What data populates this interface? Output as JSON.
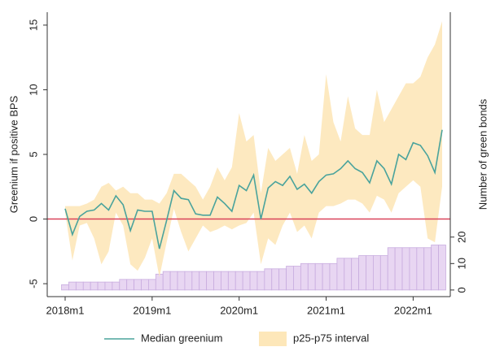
{
  "chart_data": {
    "type": "line",
    "categories": [
      "2018m1",
      null,
      null,
      null,
      null,
      null,
      null,
      null,
      null,
      null,
      null,
      null,
      "2019m1",
      null,
      null,
      null,
      null,
      null,
      null,
      null,
      null,
      null,
      null,
      null,
      "2020m1",
      null,
      null,
      null,
      null,
      null,
      null,
      null,
      null,
      null,
      null,
      null,
      "2021m1",
      null,
      null,
      null,
      null,
      null,
      null,
      null,
      null,
      null,
      null,
      null,
      "2022m1",
      null,
      null,
      null,
      null
    ],
    "series": [
      {
        "name": "Median greenium",
        "color": "#4aa39c",
        "values": [
          0.8,
          -1.2,
          0.2,
          0.6,
          0.7,
          1.2,
          0.7,
          1.8,
          1.1,
          -0.9,
          0.7,
          0.6,
          0.6,
          -2.3,
          -0.1,
          2.2,
          1.6,
          1.5,
          0.4,
          0.3,
          0.3,
          1.7,
          1.2,
          0.6,
          2.6,
          2.2,
          3.4,
          0.0,
          2.4,
          2.9,
          2.6,
          3.3,
          2.3,
          2.7,
          2.0,
          2.9,
          3.4,
          3.5,
          3.9,
          4.5,
          3.9,
          3.6,
          2.8,
          4.5,
          3.9,
          2.7,
          5.0,
          4.6,
          5.9,
          5.7,
          4.9,
          3.6,
          6.9
        ]
      }
    ],
    "band": {
      "name": "p25-p75 interval",
      "color": "#fde7b9",
      "lower": [
        0.5,
        -3.2,
        -0.5,
        -0.3,
        -1.5,
        -3.5,
        -2.5,
        0.5,
        -0.5,
        -3.5,
        -4.0,
        -3.0,
        -1.5,
        -4.5,
        -1.8,
        0.8,
        -1.0,
        -2.5,
        -1.5,
        -0.5,
        -1.0,
        -0.8,
        -0.5,
        -0.8,
        -0.5,
        -0.3,
        0.5,
        -3.5,
        -1.5,
        -2.0,
        -0.5,
        0.5,
        -1.0,
        -0.5,
        -1.5,
        0.5,
        1.0,
        1.0,
        1.2,
        1.5,
        1.5,
        1.2,
        0.5,
        1.8,
        1.5,
        0.5,
        2.0,
        2.5,
        3.0,
        2.5,
        -1.5,
        -1.8,
        2.5
      ],
      "upper": [
        1.0,
        1.0,
        1.0,
        1.2,
        1.5,
        2.5,
        2.8,
        2.2,
        2.5,
        2.0,
        2.0,
        1.5,
        1.5,
        1.2,
        2.0,
        3.5,
        3.5,
        3.0,
        2.5,
        1.5,
        2.5,
        4.0,
        3.0,
        4.0,
        8.2,
        6.0,
        6.5,
        2.0,
        5.5,
        4.5,
        5.0,
        5.5,
        3.5,
        6.5,
        4.5,
        5.0,
        11.2,
        7.5,
        6.0,
        9.5,
        7.0,
        6.5,
        6.5,
        10.0,
        7.5,
        8.5,
        9.5,
        10.5,
        10.5,
        11.0,
        12.5,
        13.5,
        15.3
      ]
    },
    "bars": {
      "axis": "y2",
      "color": "#e8d6f2",
      "edge": "#c8acdf",
      "values": [
        2,
        3,
        3,
        3,
        3,
        3,
        3,
        3,
        4,
        4,
        4,
        4,
        4,
        6,
        7,
        7,
        7,
        7,
        7,
        7,
        7,
        7,
        7,
        7,
        7,
        7,
        7,
        7,
        8,
        8,
        8,
        9,
        9,
        10,
        10,
        10,
        10,
        10,
        12,
        12,
        12,
        13,
        13,
        13,
        13,
        16,
        16,
        16,
        16,
        16,
        16,
        17,
        17
      ]
    },
    "reference_line": {
      "value": 0,
      "color": "#d9435a"
    },
    "ylabel": "Greenium if positive BPS",
    "y2label": "Number of green bonds",
    "ylim": [
      -6,
      16
    ],
    "yticks": [
      -5,
      0,
      5,
      10,
      15
    ],
    "y2lim": [
      -2.5,
      105
    ],
    "y2ticks": [
      0,
      10,
      20
    ],
    "legend": "bottom"
  }
}
